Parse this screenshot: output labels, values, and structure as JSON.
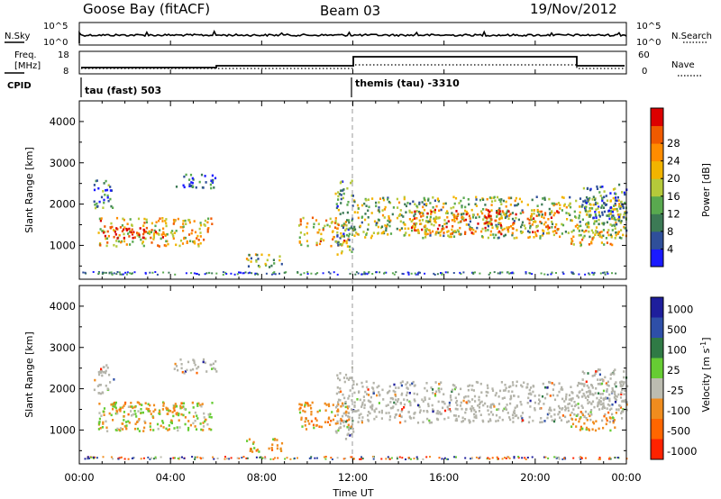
{
  "header": {
    "station": "Goose Bay (fitACF)",
    "beam": "Beam 03",
    "date": "19/Nov/2012"
  },
  "colors": {
    "power": [
      "#1a1aff",
      "#2f4f9a",
      "#3c7a55",
      "#59a94f",
      "#b5c93a",
      "#f2b400",
      "#ff8c00",
      "#f05a00",
      "#dc0000"
    ],
    "velocity": [
      "#1e1e9c",
      "#2e4fa8",
      "#2f7a45",
      "#66cc33",
      "#bcbcb0",
      "#f08c1e",
      "#ff6600",
      "#ff2200"
    ],
    "ground": "#b4b4aa"
  },
  "nsky_panel": {
    "left_label": "N.Sky",
    "right_label": "N.Search",
    "left_ticks": [
      "10^5",
      "10^0"
    ],
    "right_ticks": [
      "10^5",
      "10^0"
    ]
  },
  "freq_panel": {
    "left_label_line1": "Freq.",
    "left_label_line2": "[MHz]",
    "right_label": "Nave",
    "left_ticks": [
      "18",
      "8"
    ],
    "right_ticks": [
      "60",
      "0"
    ],
    "cpid_label": "CPID",
    "cpid_segments": [
      "tau (fast) 503",
      "themis (tau) -3310"
    ]
  },
  "x_axis": {
    "label": "Time UT",
    "tick_labels": [
      "00:00",
      "04:00",
      "08:00",
      "12:00",
      "16:00",
      "20:00",
      "00:00"
    ]
  },
  "chart_data": [
    {
      "type": "heatmap",
      "title": "",
      "xlabel": "",
      "ylabel": "Slant Range [km]",
      "x_range_hours": [
        0,
        24
      ],
      "ylim": [
        180,
        4500
      ],
      "y_ticks": [
        "1000",
        "2000",
        "3000",
        "4000"
      ],
      "colorbar_label": "Power [dB]",
      "colorbar_ticks": [
        "4",
        "8",
        "12",
        "16",
        "20",
        "24",
        "28"
      ],
      "echo_regions": [
        {
          "t": [
            0.6,
            1.5
          ],
          "range": [
            1900,
            2600
          ],
          "level": 0.25
        },
        {
          "t": [
            0.8,
            5.8
          ],
          "range": [
            1000,
            1700
          ],
          "level": 0.62
        },
        {
          "t": [
            1.0,
            3.8
          ],
          "range": [
            1200,
            1450
          ],
          "level": 0.9
        },
        {
          "t": [
            4.1,
            6.0
          ],
          "range": [
            2400,
            2750
          ],
          "level": 0.2
        },
        {
          "t": [
            7.3,
            8.9
          ],
          "range": [
            500,
            820
          ],
          "level": 0.45
        },
        {
          "t": [
            9.6,
            11.8
          ],
          "range": [
            1000,
            1700
          ],
          "level": 0.62
        },
        {
          "t": [
            11.2,
            12.0
          ],
          "range": [
            800,
            2600
          ],
          "level": 0.35
        },
        {
          "t": [
            12.0,
            24.0
          ],
          "range": [
            1200,
            2200
          ],
          "level": 0.45
        },
        {
          "t": [
            14.5,
            21.0
          ],
          "range": [
            1300,
            1900
          ],
          "level": 0.75
        },
        {
          "t": [
            21.5,
            23.5
          ],
          "range": [
            1000,
            1400
          ],
          "level": 0.6
        },
        {
          "t": [
            22.0,
            24.0
          ],
          "range": [
            1500,
            2500
          ],
          "level": 0.3
        }
      ]
    },
    {
      "type": "heatmap",
      "title": "",
      "xlabel": "Time UT",
      "ylabel": "Slant Range [km]",
      "x_range_hours": [
        0,
        24
      ],
      "ylim": [
        180,
        4500
      ],
      "y_ticks": [
        "1000",
        "2000",
        "3000",
        "4000"
      ],
      "colorbar_label": "Velocity [m s^-1]",
      "colorbar_ticks": [
        "1000",
        "500",
        "100",
        "25",
        "-25",
        "-100",
        "-500",
        "-1000"
      ],
      "echo_regions": [
        {
          "t": [
            0.6,
            1.5
          ],
          "range": [
            1900,
            2600
          ],
          "level": "ground"
        },
        {
          "t": [
            0.8,
            5.8
          ],
          "range": [
            1000,
            1700
          ],
          "level": "mixed"
        },
        {
          "t": [
            1.0,
            4.5
          ],
          "range": [
            1400,
            1700
          ],
          "level": "negative"
        },
        {
          "t": [
            4.1,
            6.0
          ],
          "range": [
            2400,
            2750
          ],
          "level": "ground"
        },
        {
          "t": [
            7.3,
            8.9
          ],
          "range": [
            500,
            820
          ],
          "level": "negative"
        },
        {
          "t": [
            9.6,
            11.8
          ],
          "range": [
            1000,
            1700
          ],
          "level": "negative"
        },
        {
          "t": [
            11.2,
            12.0
          ],
          "range": [
            800,
            2600
          ],
          "level": "ground"
        },
        {
          "t": [
            12.0,
            24.0
          ],
          "range": [
            1200,
            2200
          ],
          "level": "ground"
        },
        {
          "t": [
            21.5,
            23.5
          ],
          "range": [
            1000,
            1400
          ],
          "level": "negative"
        },
        {
          "t": [
            22.0,
            24.0
          ],
          "range": [
            1500,
            2500
          ],
          "level": "ground"
        }
      ]
    }
  ]
}
